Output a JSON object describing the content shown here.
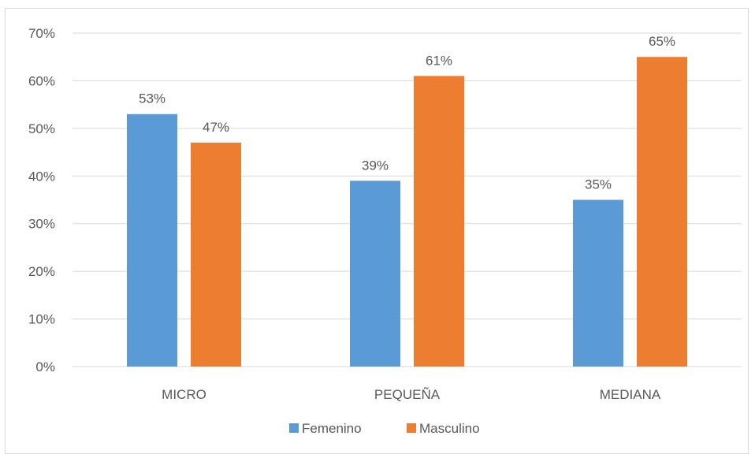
{
  "chart_data": {
    "type": "bar",
    "title": "",
    "xlabel": "",
    "ylabel": "",
    "categories": [
      "MICRO",
      "PEQUEÑA",
      "MEDIANA"
    ],
    "series": [
      {
        "name": "Femenino",
        "values": [
          53,
          39,
          35
        ],
        "labels": [
          "53%",
          "39%",
          "35%"
        ],
        "color": "#5b9bd5"
      },
      {
        "name": "Masculino",
        "values": [
          47,
          61,
          65
        ],
        "labels": [
          "47%",
          "61%",
          "65%"
        ],
        "color": "#ed7d31"
      }
    ],
    "ylim": [
      0,
      70
    ],
    "yticks": [
      "0%",
      "10%",
      "20%",
      "30%",
      "40%",
      "50%",
      "60%",
      "70%"
    ],
    "gridlines": true,
    "legend_position": "bottom"
  }
}
